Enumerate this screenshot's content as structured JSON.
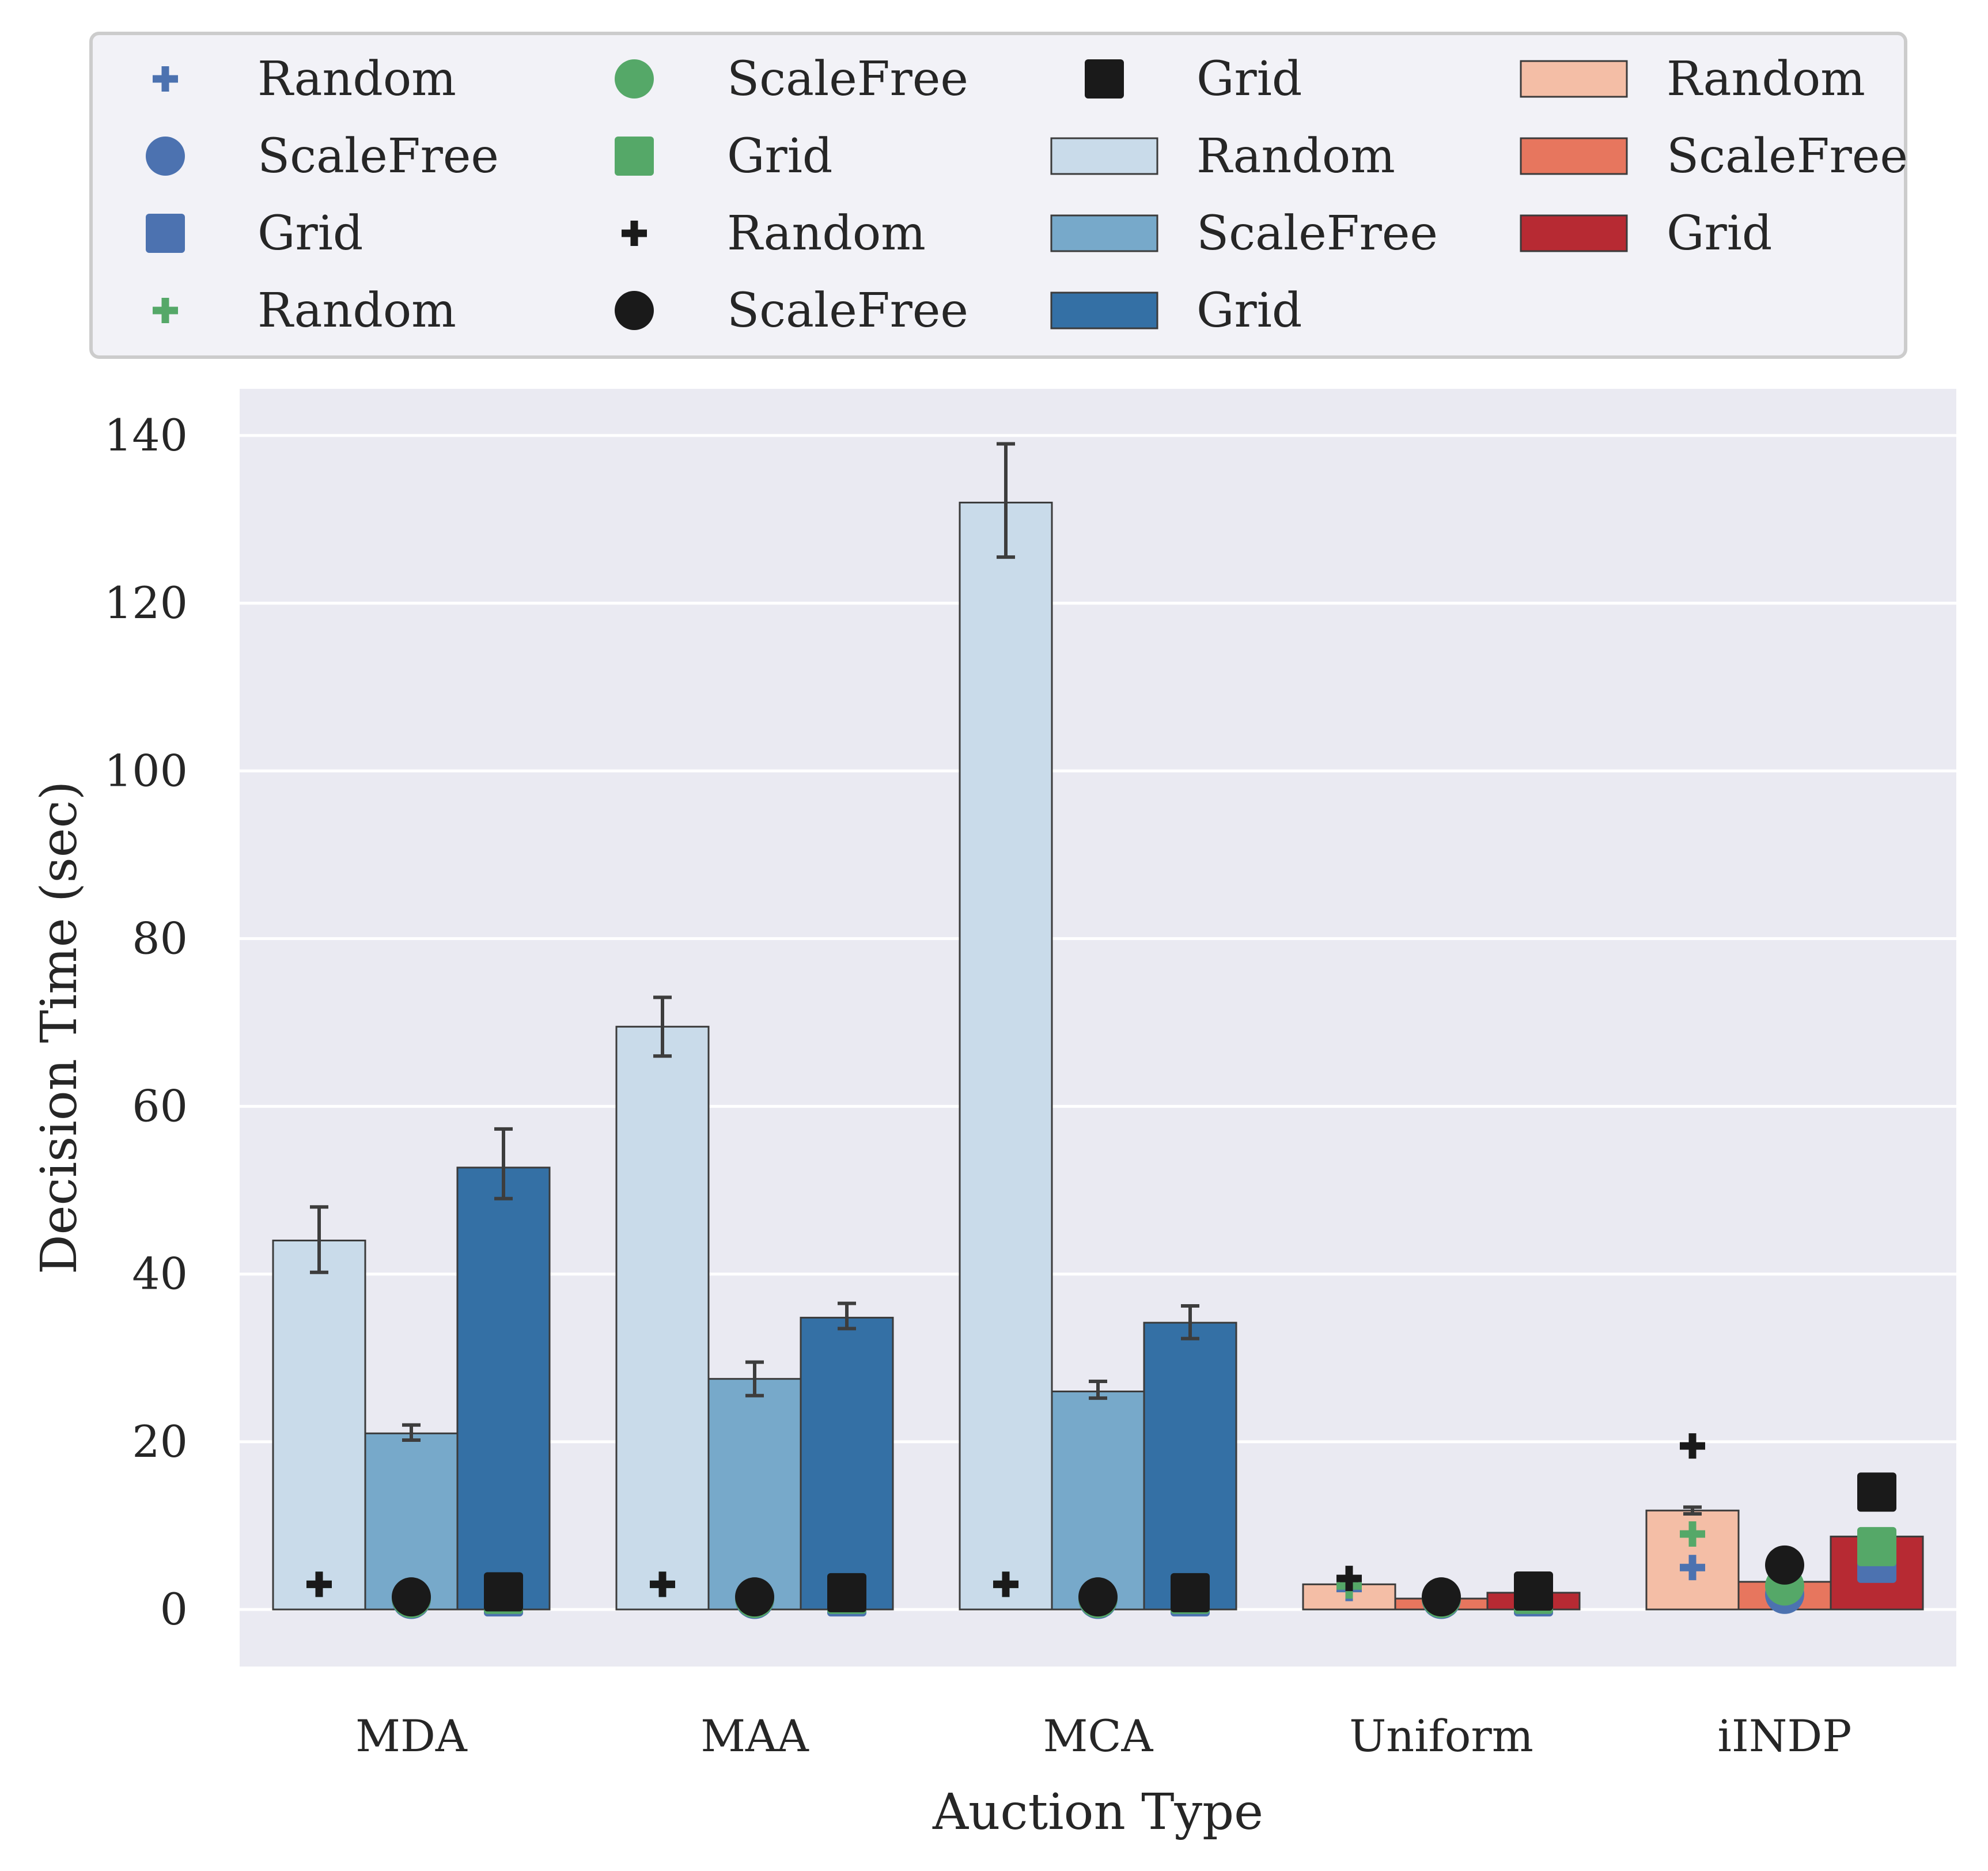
{
  "chart_data": {
    "type": "bar",
    "title": "",
    "xlabel": "Auction Type",
    "ylabel": "Decision Time (sec)",
    "ylim": [
      -7,
      145
    ],
    "yticks": [
      0,
      20,
      40,
      60,
      80,
      100,
      120,
      140
    ],
    "grid": true,
    "legend_position": "top",
    "categories": [
      "MDA",
      "MAA",
      "MCA",
      "Uniform",
      "iINDP"
    ],
    "bar_series": [
      {
        "name": "Random",
        "color": "#c9dbea",
        "values": [
          44,
          69.5,
          132,
          null,
          null
        ],
        "err_low": [
          40.2,
          66,
          125.5,
          null,
          null
        ],
        "err_high": [
          48,
          73,
          139,
          null,
          null
        ]
      },
      {
        "name": "ScaleFree",
        "color": "#77a9ca",
        "values": [
          21,
          27.5,
          26,
          null,
          null
        ],
        "err_low": [
          20.2,
          25.5,
          25.2,
          null,
          null
        ],
        "err_high": [
          22,
          29.5,
          27.2,
          null,
          null
        ]
      },
      {
        "name": "Grid",
        "color": "#3470a5",
        "values": [
          52.7,
          34.8,
          34.2,
          null,
          null
        ],
        "err_low": [
          49,
          33.5,
          32.3,
          null,
          null
        ],
        "err_high": [
          57.3,
          36.5,
          36.2,
          null,
          null
        ]
      },
      {
        "name": "Random",
        "color": "#f4bea6",
        "values": [
          null,
          null,
          null,
          3,
          11.8
        ],
        "err_low": [
          null,
          null,
          null,
          2.9,
          11.4
        ],
        "err_high": [
          null,
          null,
          null,
          3.1,
          12.2
        ]
      },
      {
        "name": "ScaleFree",
        "color": "#e7765e",
        "values": [
          null,
          null,
          null,
          1.3,
          3.3
        ],
        "err_low": [
          null,
          null,
          null,
          1.2,
          3.2
        ],
        "err_high": [
          null,
          null,
          null,
          1.4,
          3.4
        ]
      },
      {
        "name": "Grid",
        "color": "#b72a33",
        "values": [
          null,
          null,
          null,
          2,
          8.7
        ],
        "err_low": [
          null,
          null,
          null,
          1.9,
          8.6
        ],
        "err_high": [
          null,
          null,
          null,
          2.1,
          8.8
        ]
      }
    ],
    "point_series": [
      {
        "name": "Random",
        "color": "#4c72b0",
        "marker": "plus",
        "values": [
          3,
          3,
          3,
          2.5,
          5
        ]
      },
      {
        "name": "ScaleFree",
        "color": "#4c72b0",
        "marker": "circle",
        "values": [
          1.2,
          1.2,
          1.2,
          1.2,
          1.8
        ]
      },
      {
        "name": "Grid",
        "color": "#4c72b0",
        "marker": "square",
        "values": [
          1.5,
          1.5,
          1.5,
          1.5,
          5.5
        ]
      },
      {
        "name": "Random",
        "color": "#55a868",
        "marker": "plus",
        "values": [
          3,
          3,
          3,
          2.8,
          9
        ]
      },
      {
        "name": "ScaleFree",
        "color": "#55a868",
        "marker": "circle",
        "values": [
          1.3,
          1.3,
          1.3,
          1.3,
          2.8
        ]
      },
      {
        "name": "Grid",
        "color": "#55a868",
        "marker": "square",
        "values": [
          1.8,
          1.8,
          1.8,
          1.8,
          7.5
        ]
      },
      {
        "name": "Random",
        "color": "#1a1a1a",
        "marker": "plus",
        "values": [
          3,
          3,
          3,
          3.7,
          19.5
        ]
      },
      {
        "name": "ScaleFree",
        "color": "#1a1a1a",
        "marker": "circle",
        "values": [
          1.5,
          1.5,
          1.5,
          1.5,
          5.3
        ]
      },
      {
        "name": "Grid",
        "color": "#1a1a1a",
        "marker": "square",
        "values": [
          2.1,
          2,
          2,
          2.2,
          14
        ]
      }
    ]
  }
}
